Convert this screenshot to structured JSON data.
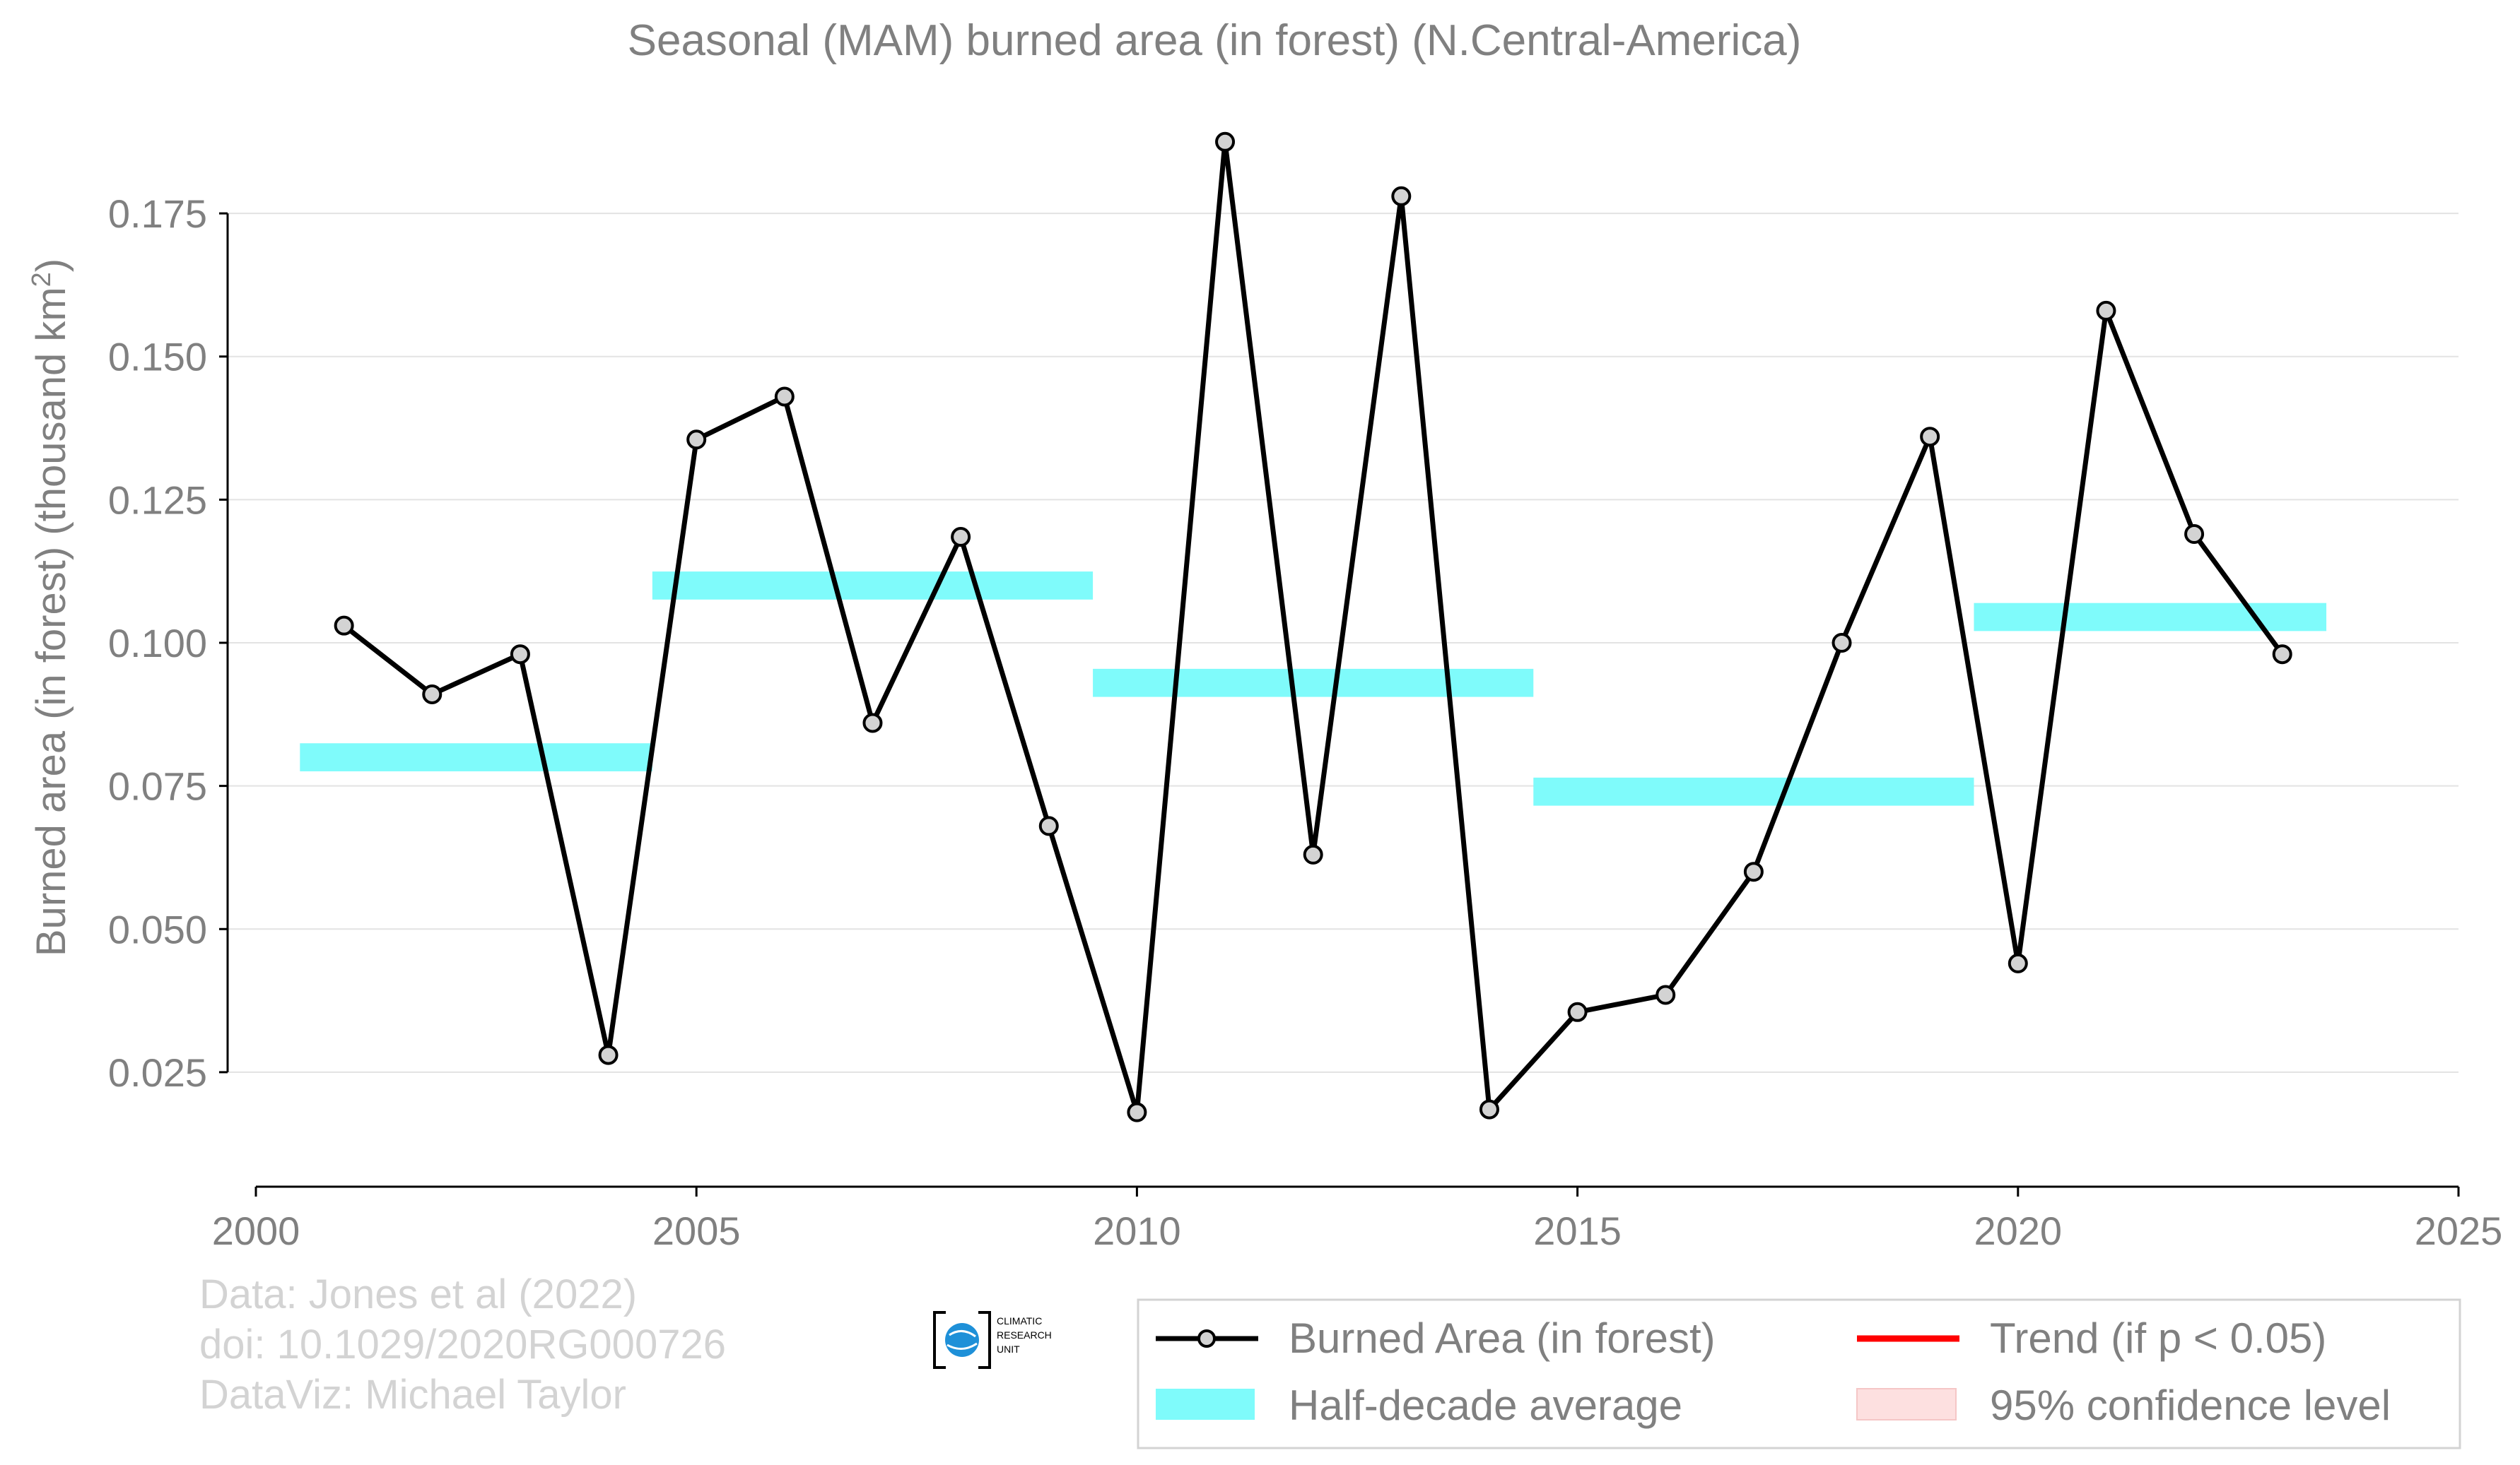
{
  "chart_data": {
    "type": "line",
    "title": "Seasonal (MAM) burned area (in forest) (N.Central-America)",
    "ylabel": "Burned area (in forest) (thousand km",
    "ylabel_sup": "2",
    "ylabel_end": ")",
    "xlim": [
      2000,
      2025
    ],
    "ylim": [
      0.005,
      0.195
    ],
    "x_ticks": [
      2000,
      2005,
      2010,
      2015,
      2020,
      2025
    ],
    "y_ticks": [
      0.025,
      0.05,
      0.075,
      0.1,
      0.125,
      0.15,
      0.175
    ],
    "y_tick_labels": [
      "0.025",
      "0.050",
      "0.075",
      "0.100",
      "0.125",
      "0.150",
      "0.175"
    ],
    "grid": "horizontal",
    "series": [
      {
        "name": "Burned Area (in forest)",
        "color": "#000000",
        "marker_fill": "#d3d3d3",
        "x": [
          2001,
          2002,
          2003,
          2004,
          2005,
          2006,
          2007,
          2008,
          2009,
          2010,
          2011,
          2012,
          2013,
          2014,
          2015,
          2016,
          2017,
          2018,
          2019,
          2020,
          2021,
          2022,
          2023
        ],
        "y": [
          0.103,
          0.091,
          0.098,
          0.028,
          0.1355,
          0.143,
          0.086,
          0.1185,
          0.068,
          0.018,
          0.1875,
          0.063,
          0.178,
          0.0185,
          0.0355,
          0.0385,
          0.06,
          0.1,
          0.136,
          0.044,
          0.158,
          0.119,
          0.098
        ]
      }
    ],
    "half_decade_average": {
      "name": "Half-decade average",
      "color": "#7ffbfb",
      "segments": [
        {
          "x0": 2000.5,
          "x1": 2004.5,
          "y": 0.08
        },
        {
          "x0": 2004.5,
          "x1": 2009.5,
          "y": 0.11
        },
        {
          "x0": 2009.5,
          "x1": 2014.5,
          "y": 0.093
        },
        {
          "x0": 2014.5,
          "x1": 2019.5,
          "y": 0.074
        },
        {
          "x0": 2019.5,
          "x1": 2023.5,
          "y": 0.1045
        }
      ]
    },
    "legend": {
      "placement": "bottom-right",
      "entries": [
        {
          "label": "Burned Area (in forest)",
          "kind": "line-marker",
          "color": "#000000"
        },
        {
          "label": "Trend (if p < 0.05)",
          "kind": "line",
          "color": "#ff0000"
        },
        {
          "label": "Half-decade average",
          "kind": "band",
          "color": "#7ffbfb"
        },
        {
          "label": "95% confidence level",
          "kind": "band",
          "color": "#fde0e0"
        }
      ]
    },
    "credits": [
      "Data: Jones et al (2022)",
      "doi: 10.1029/2020RG000726",
      "DataViz: Michael Taylor"
    ],
    "logo": {
      "lines": [
        "CLIMATIC",
        "RESEARCH",
        "UNIT"
      ],
      "icon": "globe-icon"
    }
  }
}
